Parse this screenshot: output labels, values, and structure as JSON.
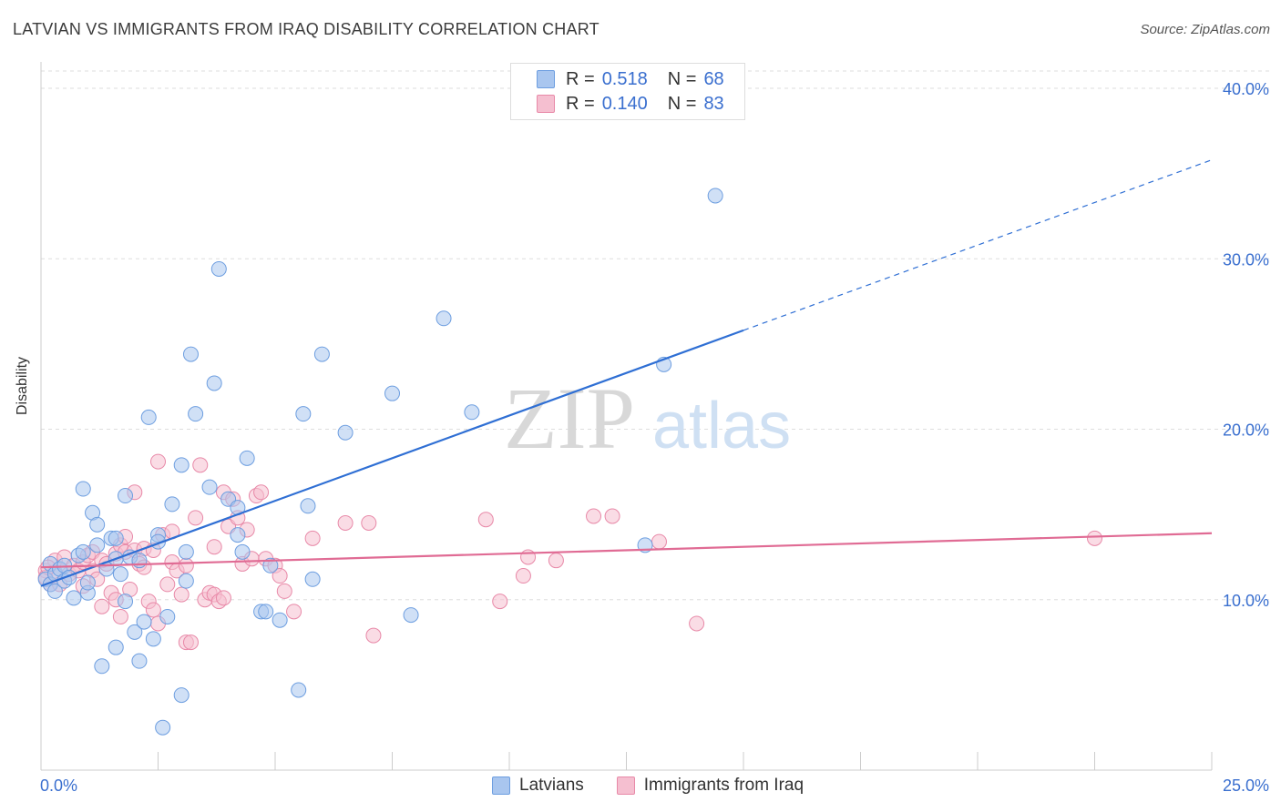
{
  "title": "LATVIAN VS IMMIGRANTS FROM IRAQ DISABILITY CORRELATION CHART",
  "source": "Source: ZipAtlas.com",
  "watermark": {
    "zip": "ZIP",
    "atlas": "atlas"
  },
  "legend_top": [
    {
      "r_label": "R =",
      "r_value": "0.518",
      "n_label": "N =",
      "n_value": "68"
    },
    {
      "r_label": "R =",
      "r_value": "0.140",
      "n_label": "N =",
      "n_value": "83"
    }
  ],
  "colors": {
    "blue_fill": "#a9c6ef",
    "blue_stroke": "#6d9ee0",
    "blue_line": "#2f6fd4",
    "pink_fill": "#f5bfd0",
    "pink_stroke": "#e889a8",
    "pink_line": "#e06b94",
    "axis_text": "#3a6fcf",
    "grid": "#dddddd"
  },
  "chart_data": {
    "type": "scatter",
    "title": "LATVIAN VS IMMIGRANTS FROM IRAQ DISABILITY CORRELATION CHART",
    "xlabel": "",
    "ylabel": "Disability",
    "xlim": [
      0,
      25
    ],
    "ylim": [
      0,
      40
    ],
    "x_tick_labels": [
      "0.0%",
      "25.0%"
    ],
    "y_tick_labels": [
      "10.0%",
      "20.0%",
      "30.0%",
      "40.0%"
    ],
    "y_ticks": [
      10,
      20,
      30,
      40
    ],
    "grid": true,
    "legend_position": "bottom",
    "series": [
      {
        "name": "Latvians",
        "trend": {
          "x0": 0,
          "y0": 10.8,
          "x1": 15.0,
          "y1": 25.8,
          "dashed_to_x": 25.0,
          "dashed_to_y": 35.8
        },
        "points": [
          [
            0.1,
            11.2
          ],
          [
            0.2,
            12.1
          ],
          [
            0.2,
            10.9
          ],
          [
            0.3,
            10.5
          ],
          [
            0.3,
            11.5
          ],
          [
            0.4,
            11.8
          ],
          [
            0.5,
            11.1
          ],
          [
            0.5,
            12.0
          ],
          [
            0.6,
            11.3
          ],
          [
            0.7,
            10.1
          ],
          [
            0.8,
            12.6
          ],
          [
            0.9,
            12.8
          ],
          [
            0.9,
            16.5
          ],
          [
            1.0,
            10.4
          ],
          [
            1.0,
            11.0
          ],
          [
            1.1,
            15.1
          ],
          [
            1.2,
            13.2
          ],
          [
            1.2,
            14.4
          ],
          [
            1.3,
            6.1
          ],
          [
            1.4,
            11.8
          ],
          [
            1.5,
            13.6
          ],
          [
            1.6,
            12.4
          ],
          [
            1.6,
            13.6
          ],
          [
            1.6,
            7.2
          ],
          [
            1.7,
            11.5
          ],
          [
            1.8,
            9.9
          ],
          [
            1.8,
            16.1
          ],
          [
            1.9,
            12.5
          ],
          [
            2.0,
            8.1
          ],
          [
            2.1,
            6.4
          ],
          [
            2.1,
            12.3
          ],
          [
            2.2,
            8.7
          ],
          [
            2.3,
            20.7
          ],
          [
            2.4,
            7.7
          ],
          [
            2.5,
            13.8
          ],
          [
            2.5,
            13.4
          ],
          [
            2.6,
            2.5
          ],
          [
            2.7,
            9.0
          ],
          [
            2.8,
            15.6
          ],
          [
            3.0,
            17.9
          ],
          [
            3.0,
            4.4
          ],
          [
            3.1,
            11.1
          ],
          [
            3.1,
            12.8
          ],
          [
            3.2,
            24.4
          ],
          [
            3.3,
            20.9
          ],
          [
            3.6,
            16.6
          ],
          [
            3.7,
            22.7
          ],
          [
            3.8,
            29.4
          ],
          [
            4.0,
            15.9
          ],
          [
            4.2,
            13.8
          ],
          [
            4.2,
            15.4
          ],
          [
            4.3,
            12.8
          ],
          [
            4.4,
            18.3
          ],
          [
            4.7,
            9.3
          ],
          [
            4.8,
            9.3
          ],
          [
            4.9,
            12.0
          ],
          [
            5.1,
            8.8
          ],
          [
            5.5,
            4.7
          ],
          [
            5.6,
            20.9
          ],
          [
            5.7,
            15.5
          ],
          [
            5.8,
            11.2
          ],
          [
            6.0,
            24.4
          ],
          [
            6.5,
            19.8
          ],
          [
            7.5,
            22.1
          ],
          [
            7.9,
            9.1
          ],
          [
            8.6,
            26.5
          ],
          [
            9.2,
            21.0
          ],
          [
            12.9,
            13.2
          ],
          [
            13.3,
            23.8
          ],
          [
            14.4,
            33.7
          ]
        ]
      },
      {
        "name": "Immigrants from Iraq",
        "trend": {
          "x0": 0,
          "y0": 11.9,
          "x1": 25.0,
          "y1": 13.9
        },
        "points": [
          [
            0.1,
            11.7
          ],
          [
            0.1,
            11.3
          ],
          [
            0.2,
            10.9
          ],
          [
            0.3,
            11.6
          ],
          [
            0.3,
            12.3
          ],
          [
            0.4,
            10.9
          ],
          [
            0.5,
            12.5
          ],
          [
            0.6,
            11.5
          ],
          [
            0.7,
            12.0
          ],
          [
            0.8,
            11.7
          ],
          [
            0.9,
            12.2
          ],
          [
            0.9,
            10.8
          ],
          [
            1.0,
            12.6
          ],
          [
            1.1,
            11.7
          ],
          [
            1.1,
            12.8
          ],
          [
            1.2,
            11.2
          ],
          [
            1.3,
            9.6
          ],
          [
            1.3,
            12.3
          ],
          [
            1.4,
            12.1
          ],
          [
            1.5,
            10.4
          ],
          [
            1.6,
            12.7
          ],
          [
            1.6,
            10.0
          ],
          [
            1.7,
            13.2
          ],
          [
            1.7,
            9.0
          ],
          [
            1.8,
            12.8
          ],
          [
            1.8,
            13.7
          ],
          [
            1.9,
            10.6
          ],
          [
            2.0,
            16.3
          ],
          [
            2.0,
            12.9
          ],
          [
            2.1,
            12.1
          ],
          [
            2.2,
            11.9
          ],
          [
            2.2,
            13.0
          ],
          [
            2.3,
            9.9
          ],
          [
            2.4,
            9.4
          ],
          [
            2.4,
            12.9
          ],
          [
            2.5,
            8.6
          ],
          [
            2.5,
            18.1
          ],
          [
            2.6,
            13.8
          ],
          [
            2.7,
            10.9
          ],
          [
            2.8,
            14.0
          ],
          [
            2.8,
            12.2
          ],
          [
            2.9,
            11.7
          ],
          [
            3.0,
            10.3
          ],
          [
            3.1,
            12.0
          ],
          [
            3.1,
            7.5
          ],
          [
            3.2,
            7.5
          ],
          [
            3.3,
            14.8
          ],
          [
            3.4,
            17.9
          ],
          [
            3.5,
            10.0
          ],
          [
            3.6,
            10.4
          ],
          [
            3.7,
            13.1
          ],
          [
            3.7,
            10.3
          ],
          [
            3.8,
            9.9
          ],
          [
            3.9,
            10.1
          ],
          [
            3.9,
            16.3
          ],
          [
            4.0,
            14.3
          ],
          [
            4.1,
            15.9
          ],
          [
            4.2,
            14.8
          ],
          [
            4.3,
            12.1
          ],
          [
            4.4,
            14.1
          ],
          [
            4.5,
            12.4
          ],
          [
            4.6,
            16.1
          ],
          [
            4.7,
            16.3
          ],
          [
            4.8,
            12.4
          ],
          [
            5.0,
            12.0
          ],
          [
            5.1,
            11.4
          ],
          [
            5.2,
            10.5
          ],
          [
            5.4,
            9.3
          ],
          [
            5.8,
            13.6
          ],
          [
            6.5,
            14.5
          ],
          [
            7.0,
            14.5
          ],
          [
            7.1,
            7.9
          ],
          [
            9.5,
            14.7
          ],
          [
            9.8,
            9.9
          ],
          [
            10.3,
            11.4
          ],
          [
            10.4,
            12.5
          ],
          [
            11.0,
            12.3
          ],
          [
            11.8,
            14.9
          ],
          [
            12.2,
            14.9
          ],
          [
            13.2,
            13.4
          ],
          [
            14.0,
            8.6
          ],
          [
            22.5,
            13.6
          ],
          [
            0.15,
            11.9
          ]
        ]
      }
    ]
  },
  "bottom_legend": [
    {
      "label": "Latvians"
    },
    {
      "label": "Immigrants from Iraq"
    }
  ]
}
